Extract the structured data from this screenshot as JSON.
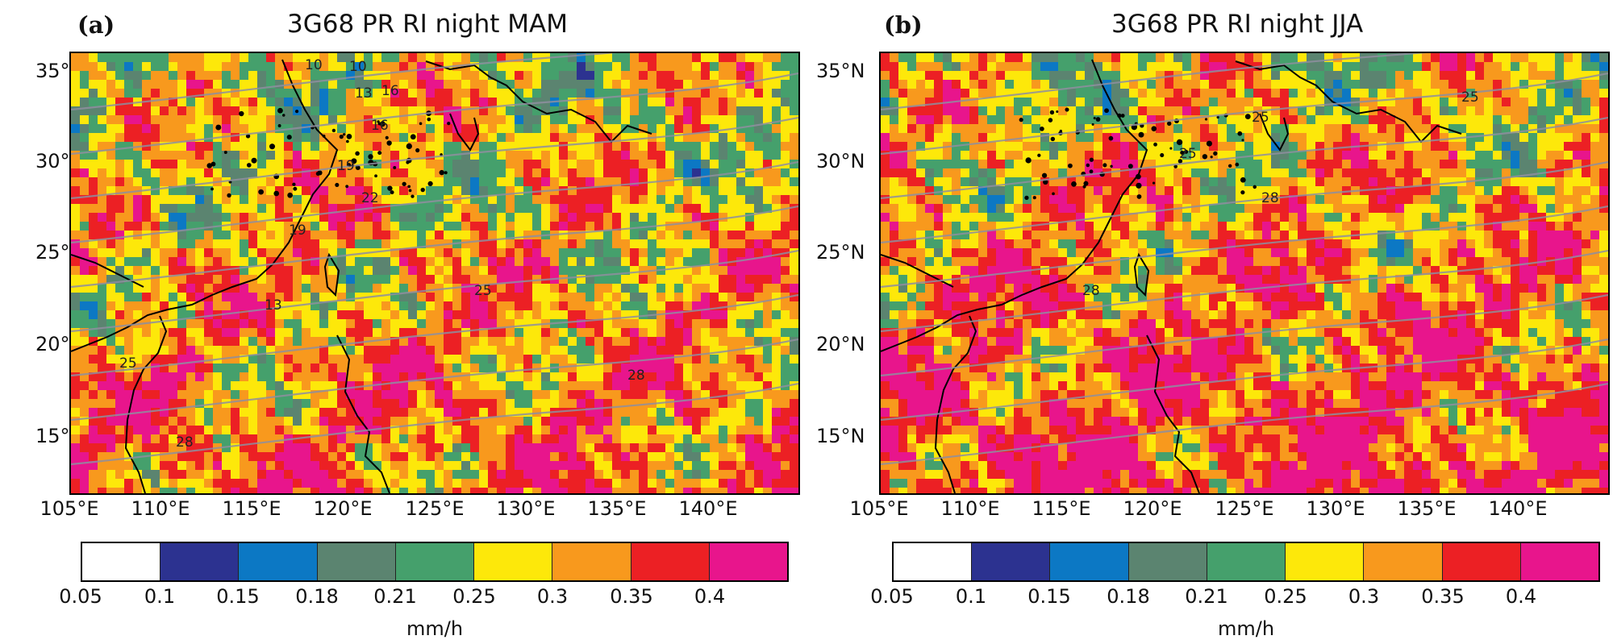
{
  "panels": [
    {
      "letter": "(a)",
      "title": "3G68 PR RI night MAM",
      "contour_labels": [
        "10",
        "10",
        "13",
        "16",
        "16",
        "19",
        "22",
        "19",
        "25",
        "25",
        "28",
        "28",
        "13"
      ]
    },
    {
      "letter": "(b)",
      "title": "3G68 PR RI night JJA",
      "contour_labels": [
        "25",
        "25",
        "28",
        "28",
        "25"
      ]
    }
  ],
  "axes": {
    "lat_labels": [
      "35°N",
      "30°N",
      "25°N",
      "20°N",
      "15°N"
    ],
    "lon_labels": [
      "105°E",
      "110°E",
      "115°E",
      "120°E",
      "125°E",
      "130°E",
      "135°E",
      "140°E"
    ]
  },
  "colorbar": {
    "ticks": [
      "0.05",
      "0.1",
      "0.15",
      "0.18",
      "0.21",
      "0.25",
      "0.3",
      "0.35",
      "0.4"
    ],
    "unit": "mm/h",
    "colors": [
      "#ffffff",
      "#2c3290",
      "#0c78c4",
      "#5b8470",
      "#45a06c",
      "#fde80a",
      "#f8991d",
      "#ec2024",
      "#e8158c"
    ]
  }
}
